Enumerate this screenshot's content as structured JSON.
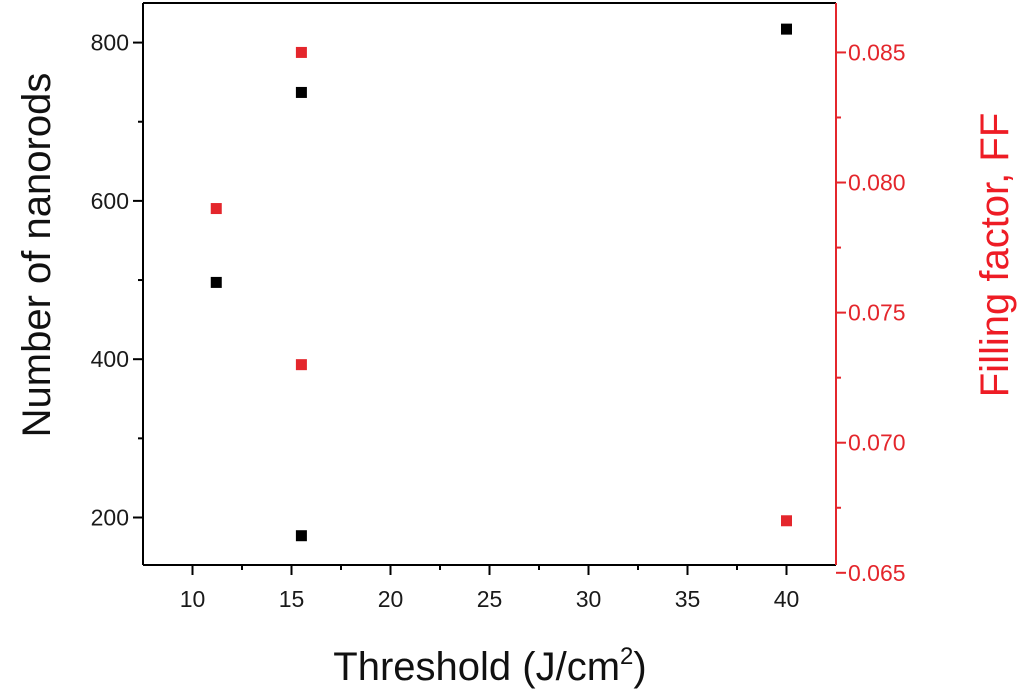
{
  "chart_data": {
    "type": "scatter",
    "xlabel_main": "Threshold (J/cm",
    "xlabel_sup": "2",
    "xlabel_close": ")",
    "ylabel_left": "Number of nanorods",
    "ylabel_right": "Filling factor, FF",
    "xlim": [
      7.5,
      42.5
    ],
    "ylim_left": [
      140,
      850
    ],
    "ylim_right": [
      0.0653,
      0.0869
    ],
    "x_ticks": [
      10,
      15,
      20,
      25,
      30,
      35,
      40
    ],
    "left_ticks": [
      200,
      400,
      600,
      800
    ],
    "right_ticks": [
      "0.065",
      "0.070",
      "0.075",
      "0.080",
      "0.085"
    ],
    "colors": {
      "left_series": "#000000",
      "right_series": "#e4262c",
      "right_axis": "#e4262c"
    },
    "series": [
      {
        "axis": "left",
        "x": [
          11.2,
          15.5,
          15.5,
          40
        ],
        "y": [
          497,
          737,
          177,
          817
        ]
      },
      {
        "axis": "right",
        "x": [
          11.2,
          15.5,
          15.5,
          40
        ],
        "y": [
          0.079,
          0.085,
          0.073,
          0.067
        ]
      }
    ],
    "grid": false,
    "legend": "none"
  }
}
